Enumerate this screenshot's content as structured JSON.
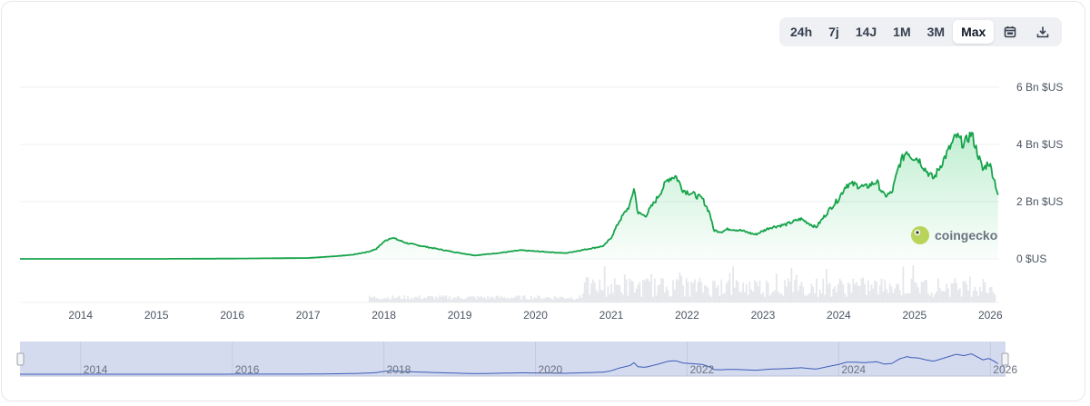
{
  "toolbar": {
    "ranges": [
      "24h",
      "7j",
      "14J",
      "1M",
      "3M",
      "Max"
    ],
    "active": "Max",
    "icons": [
      "calendar-icon",
      "download-icon"
    ]
  },
  "watermark": {
    "text": "coingecko"
  },
  "colors": {
    "line": "#16a34a",
    "fill_top": "#22c55e",
    "volume": "#e5e7eb",
    "grid": "#eef0f2",
    "navigator_bg": "#d5dbef",
    "navigator_line": "#3b5bb5",
    "logo": "#a3c93a"
  },
  "chart_data": {
    "type": "area",
    "title": "",
    "xlabel": "",
    "ylabel": "",
    "x_ticks": [
      "2014",
      "2015",
      "2016",
      "2017",
      "2018",
      "2019",
      "2020",
      "2021",
      "2022",
      "2023",
      "2024",
      "2025",
      "2026"
    ],
    "y_ticks": [
      "0 $US",
      "2 Bn $US",
      "4 Bn $US",
      "6 Bn $US"
    ],
    "ylim": [
      0,
      6
    ],
    "xlim": [
      2013.2,
      2026.2
    ],
    "grid": true,
    "series": [
      {
        "x": [
          2013.2,
          2014.0,
          2015.0,
          2016.0,
          2017.0,
          2017.4,
          2017.6,
          2017.8,
          2017.9,
          2018.0,
          2018.1,
          2018.3,
          2018.6,
          2018.9,
          2019.2,
          2019.5,
          2019.8,
          2020.1,
          2020.4,
          2020.7,
          2020.9,
          2021.0,
          2021.1,
          2021.25,
          2021.3,
          2021.35,
          2021.45,
          2021.6,
          2021.75,
          2021.85,
          2021.95,
          2022.05,
          2022.2,
          2022.3,
          2022.35,
          2022.45,
          2022.55,
          2022.7,
          2022.9,
          2023.1,
          2023.3,
          2023.5,
          2023.7,
          2023.9,
          2024.0,
          2024.1,
          2024.2,
          2024.35,
          2024.5,
          2024.6,
          2024.7,
          2024.8,
          2024.9,
          2024.95,
          2025.05,
          2025.15,
          2025.25,
          2025.35,
          2025.45,
          2025.55,
          2025.65,
          2025.75,
          2025.82,
          2025.9,
          2025.98,
          2026.05,
          2026.1
        ],
        "y": [
          0.0,
          0.0,
          0.0,
          0.01,
          0.03,
          0.1,
          0.15,
          0.25,
          0.35,
          0.6,
          0.75,
          0.55,
          0.4,
          0.25,
          0.12,
          0.2,
          0.3,
          0.25,
          0.2,
          0.35,
          0.45,
          0.75,
          1.3,
          1.9,
          2.5,
          1.6,
          1.5,
          2.1,
          2.8,
          2.9,
          2.4,
          2.3,
          2.1,
          1.6,
          1.0,
          0.95,
          1.05,
          1.0,
          0.85,
          1.1,
          1.2,
          1.4,
          1.1,
          1.8,
          2.1,
          2.6,
          2.6,
          2.5,
          2.7,
          2.2,
          2.3,
          3.3,
          3.8,
          3.6,
          3.5,
          3.1,
          2.8,
          3.3,
          3.8,
          4.3,
          4.0,
          4.4,
          3.8,
          3.1,
          3.4,
          2.8,
          2.25
        ]
      }
    ],
    "navigator_labels": [
      "2014",
      "2016",
      "2018",
      "2020",
      "2022",
      "2024",
      "2026"
    ]
  }
}
